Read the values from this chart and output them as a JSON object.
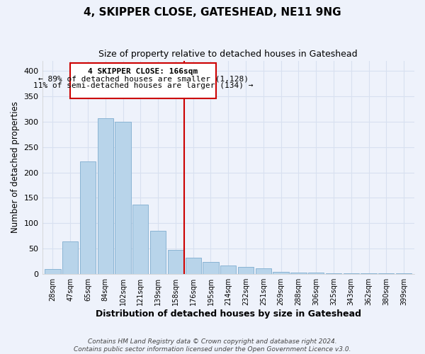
{
  "title": "4, SKIPPER CLOSE, GATESHEAD, NE11 9NG",
  "subtitle": "Size of property relative to detached houses in Gateshead",
  "xlabel": "Distribution of detached houses by size in Gateshead",
  "ylabel": "Number of detached properties",
  "bar_labels": [
    "28sqm",
    "47sqm",
    "65sqm",
    "84sqm",
    "102sqm",
    "121sqm",
    "139sqm",
    "158sqm",
    "176sqm",
    "195sqm",
    "214sqm",
    "232sqm",
    "251sqm",
    "269sqm",
    "288sqm",
    "306sqm",
    "325sqm",
    "343sqm",
    "362sqm",
    "380sqm",
    "399sqm"
  ],
  "bar_heights": [
    10,
    64,
    221,
    306,
    300,
    137,
    85,
    47,
    33,
    24,
    17,
    14,
    12,
    5,
    3,
    3,
    2,
    2,
    2,
    2,
    2
  ],
  "bar_color": "#b8d4ea",
  "bar_edge_color": "#8ab4d4",
  "vline_color": "#cc0000",
  "annotation_title": "4 SKIPPER CLOSE: 166sqm",
  "annotation_line1": "← 89% of detached houses are smaller (1,128)",
  "annotation_line2": "11% of semi-detached houses are larger (134) →",
  "annotation_box_color": "#ffffff",
  "annotation_box_edge": "#cc0000",
  "ylim": [
    0,
    420
  ],
  "yticks": [
    0,
    50,
    100,
    150,
    200,
    250,
    300,
    350,
    400
  ],
  "background_color": "#eef2fb",
  "grid_color": "#d8e0f0",
  "footer_line1": "Contains HM Land Registry data © Crown copyright and database right 2024.",
  "footer_line2": "Contains public sector information licensed under the Open Government Licence v3.0."
}
